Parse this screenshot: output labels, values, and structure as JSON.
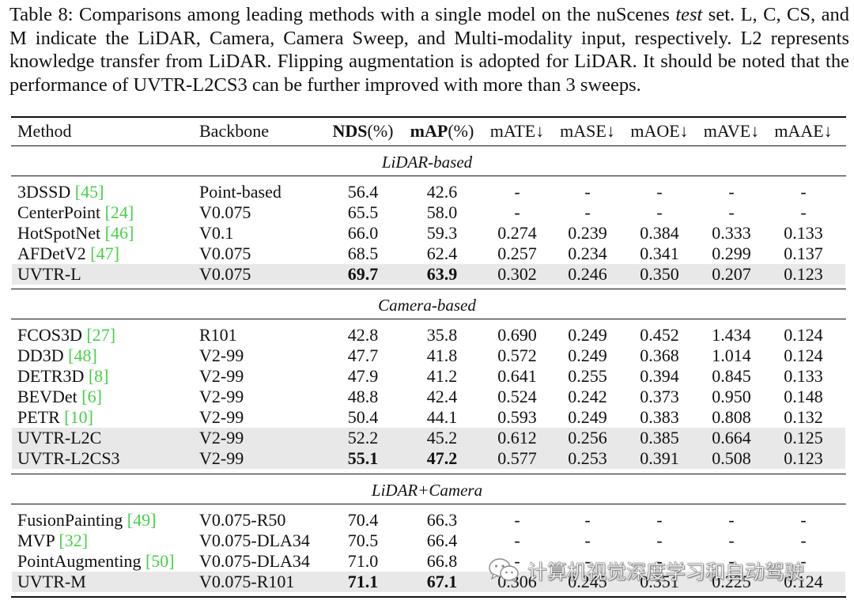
{
  "caption": {
    "part1": "Table 8: Comparisons among leading methods with a single model on the nuScenes ",
    "italic": "test",
    "part2": " set. L, C, CS, and M indicate the LiDAR, Camera, Camera Sweep, and Multi-modality input, respectively. L2 represents knowledge transfer from LiDAR. Flipping augmentation is adopted for LiDAR. It should be noted that the performance of UVTR-L2CS3 can be further improved with more than 3 sweeps."
  },
  "headers": {
    "method": "Method",
    "backbone": "Backbone",
    "nds_bold": "NDS",
    "nds_unit": "(%)",
    "map_bold": "mAP",
    "map_unit": "(%)",
    "mate": "mATE↓",
    "mase": "mASE↓",
    "maoe": "mAOE↓",
    "mave": "mAVE↓",
    "maae": "mAAE↓"
  },
  "sections": [
    {
      "title": "LiDAR-based",
      "rows": [
        {
          "method": "3DSSD",
          "ref": "[45]",
          "backbone": "Point-based",
          "nds": "56.4",
          "map": "42.6",
          "mate": "-",
          "mase": "-",
          "maoe": "-",
          "mave": "-",
          "maae": "-"
        },
        {
          "method": "CenterPoint",
          "ref": "[24]",
          "backbone": "V0.075",
          "nds": "65.5",
          "map": "58.0",
          "mate": "-",
          "mase": "-",
          "maoe": "-",
          "mave": "-",
          "maae": "-"
        },
        {
          "method": "HotSpotNet",
          "ref": "[46]",
          "backbone": "V0.1",
          "nds": "66.0",
          "map": "59.3",
          "mate": "0.274",
          "mase": "0.239",
          "maoe": "0.384",
          "mave": "0.333",
          "maae": "0.133"
        },
        {
          "method": "AFDetV2",
          "ref": "[47]",
          "backbone": "V0.075",
          "nds": "68.5",
          "map": "62.4",
          "mate": "0.257",
          "mase": "0.234",
          "maoe": "0.341",
          "mave": "0.299",
          "maae": "0.137"
        },
        {
          "method": "UVTR-L",
          "ref": "",
          "backbone": "V0.075",
          "nds": "69.7",
          "map": "63.9",
          "mate": "0.302",
          "mase": "0.246",
          "maoe": "0.350",
          "mave": "0.207",
          "maae": "0.123",
          "highlight": true,
          "bold_scores": true
        }
      ]
    },
    {
      "title": "Camera-based",
      "rows": [
        {
          "method": "FCOS3D",
          "ref": "[27]",
          "backbone": "R101",
          "nds": "42.8",
          "map": "35.8",
          "mate": "0.690",
          "mase": "0.249",
          "maoe": "0.452",
          "mave": "1.434",
          "maae": "0.124"
        },
        {
          "method": "DD3D",
          "ref": "[48]",
          "backbone": "V2-99",
          "nds": "47.7",
          "map": "41.8",
          "mate": "0.572",
          "mase": "0.249",
          "maoe": "0.368",
          "mave": "1.014",
          "maae": "0.124"
        },
        {
          "method": "DETR3D",
          "ref": "[8]",
          "backbone": "V2-99",
          "nds": "47.9",
          "map": "41.2",
          "mate": "0.641",
          "mase": "0.255",
          "maoe": "0.394",
          "mave": "0.845",
          "maae": "0.133"
        },
        {
          "method": "BEVDet",
          "ref": "[6]",
          "backbone": "V2-99",
          "nds": "48.8",
          "map": "42.4",
          "mate": "0.524",
          "mase": "0.242",
          "maoe": "0.373",
          "mave": "0.950",
          "maae": "0.148"
        },
        {
          "method": "PETR",
          "ref": "[10]",
          "backbone": "V2-99",
          "nds": "50.4",
          "map": "44.1",
          "mate": "0.593",
          "mase": "0.249",
          "maoe": "0.383",
          "mave": "0.808",
          "maae": "0.132"
        },
        {
          "method": "UVTR-L2C",
          "ref": "",
          "backbone": "V2-99",
          "nds": "52.2",
          "map": "45.2",
          "mate": "0.612",
          "mase": "0.256",
          "maoe": "0.385",
          "mave": "0.664",
          "maae": "0.125",
          "highlight": true
        },
        {
          "method": "UVTR-L2CS3",
          "ref": "",
          "backbone": "V2-99",
          "nds": "55.1",
          "map": "47.2",
          "mate": "0.577",
          "mase": "0.253",
          "maoe": "0.391",
          "mave": "0.508",
          "maae": "0.123",
          "highlight": true,
          "bold_scores": true
        }
      ]
    },
    {
      "title": "LiDAR+Camera",
      "rows": [
        {
          "method": "FusionPainting",
          "ref": "[49]",
          "backbone": "V0.075-R50",
          "nds": "70.4",
          "map": "66.3",
          "mate": "-",
          "mase": "-",
          "maoe": "-",
          "mave": "-",
          "maae": "-"
        },
        {
          "method": "MVP",
          "ref": "[32]",
          "backbone": "V0.075-DLA34",
          "nds": "70.5",
          "map": "66.4",
          "mate": "-",
          "mase": "-",
          "maoe": "-",
          "mave": "-",
          "maae": "-"
        },
        {
          "method": "PointAugmenting",
          "ref": "[50]",
          "backbone": "V0.075-DLA34",
          "nds": "71.0",
          "map": "66.8",
          "mate": "-",
          "mase": "-",
          "maoe": "-",
          "mave": "-",
          "maae": "-"
        },
        {
          "method": "UVTR-M",
          "ref": "",
          "backbone": "V0.075-R101",
          "nds": "71.1",
          "map": "67.1",
          "mate": "0.306",
          "mase": "0.245",
          "maoe": "0.351",
          "mave": "0.225",
          "maae": "0.124",
          "highlight": true,
          "bold_scores": true
        }
      ]
    }
  ],
  "watermark": {
    "icon": "wechat-icon",
    "text": "计算机视觉深度学习和自动驾驶"
  }
}
